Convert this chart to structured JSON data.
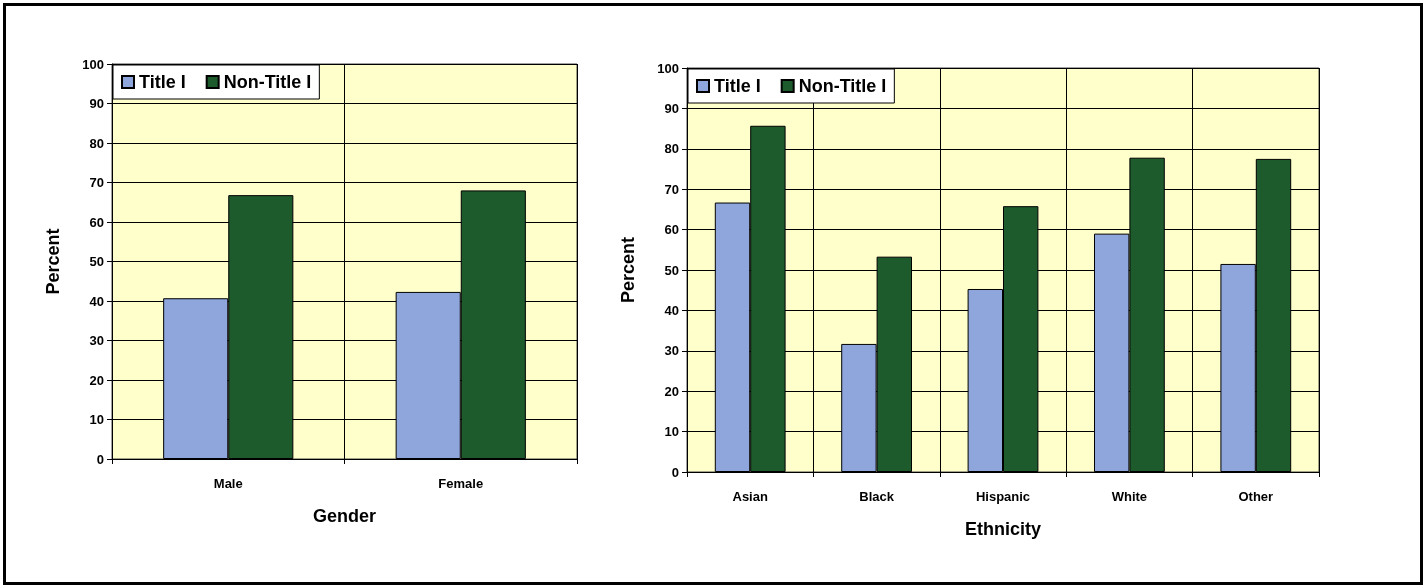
{
  "chart_data": [
    {
      "type": "bar",
      "xlabel": "Gender",
      "ylabel": "Percent",
      "categories": [
        "Male",
        "Female"
      ],
      "series": [
        {
          "name": "Title I",
          "color": "#8ea6dc",
          "values": [
            40.7,
            42.3
          ]
        },
        {
          "name": "Non-Title I",
          "color": "#1d5a2c",
          "values": [
            66.8,
            68.0
          ]
        }
      ],
      "ylim": [
        0,
        100
      ],
      "yticks": [
        0,
        10,
        20,
        30,
        40,
        50,
        60,
        70,
        80,
        90,
        100
      ],
      "grid": true,
      "legend": "top left"
    },
    {
      "type": "bar",
      "xlabel": "Ethnicity",
      "ylabel": "Percent",
      "categories": [
        "Asian",
        "Black",
        "Hispanic",
        "White",
        "Other"
      ],
      "series": [
        {
          "name": "Title I",
          "color": "#8ea6dc",
          "values": [
            66.7,
            31.7,
            45.3,
            59.0,
            51.5
          ]
        },
        {
          "name": "Non-Title I",
          "color": "#1d5a2c",
          "values": [
            85.7,
            53.3,
            65.8,
            77.8,
            77.5
          ]
        }
      ],
      "ylim": [
        0,
        100
      ],
      "yticks": [
        0,
        10,
        20,
        30,
        40,
        50,
        60,
        70,
        80,
        90,
        100
      ],
      "grid": true,
      "legend": "top left"
    }
  ]
}
